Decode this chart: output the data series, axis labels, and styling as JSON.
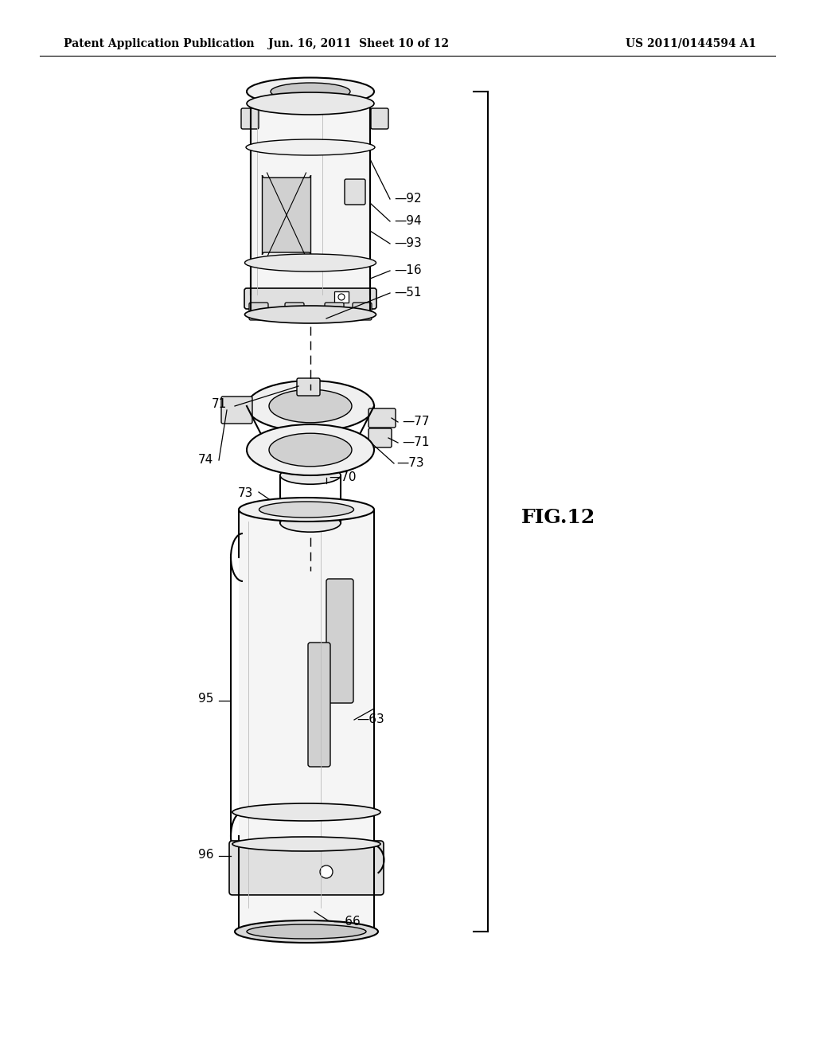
{
  "title_left": "Patent Application Publication",
  "title_center": "Jun. 16, 2011  Sheet 10 of 12",
  "title_right": "US 2011/0144594 A1",
  "fig_label": "FIG.12",
  "background_color": "#ffffff",
  "line_color": "#000000"
}
